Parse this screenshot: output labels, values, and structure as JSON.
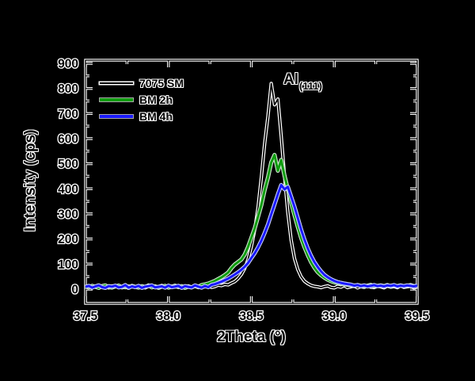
{
  "figure": {
    "background_color": "#000000",
    "axis_line_core_color": "#000000",
    "axis_line_halo_color": "#ffffff",
    "text_color": "#000000",
    "text_outline_color": "#ffffff"
  },
  "chart_data": {
    "type": "line",
    "title": "",
    "xlabel": "2Theta (°)",
    "ylabel": "Intensity (cps)",
    "xlim": [
      37.5,
      39.5
    ],
    "ylim": [
      -57,
      915
    ],
    "grid": false,
    "legend_position": "top-left",
    "annotation": {
      "text": "Al",
      "sub": "(111)"
    },
    "xticks": {
      "major": [
        37.5,
        38.0,
        38.5,
        39.0,
        39.5
      ],
      "labels": [
        "37.5",
        "38.0",
        "38.5",
        "39.0",
        "39.5"
      ],
      "minor": [
        37.75,
        38.25,
        38.75,
        39.25
      ]
    },
    "yticks": {
      "major": [
        0,
        100,
        200,
        300,
        400,
        500,
        600,
        700,
        800,
        900
      ],
      "labels": [
        "0",
        "100",
        "200",
        "300",
        "400",
        "500",
        "600",
        "700",
        "800",
        "900"
      ],
      "minor": [
        50,
        150,
        250,
        350,
        450,
        550,
        650,
        750,
        850
      ]
    },
    "x_start": 37.5,
    "x_step": 0.02,
    "series": [
      {
        "name": "7075 SM",
        "color": "#000000",
        "halo": "#ffffff",
        "width": 1.7,
        "halo_width": 4.2,
        "values": [
          8,
          12,
          6,
          10,
          14,
          7,
          11,
          5,
          13,
          9,
          15,
          8,
          6,
          12,
          10,
          7,
          14,
          9,
          5,
          11,
          13,
          7,
          10,
          15,
          8,
          6,
          12,
          9,
          14,
          10,
          7,
          13,
          8,
          11,
          6,
          15,
          9,
          12,
          7,
          10,
          16,
          14,
          19,
          17,
          24,
          30,
          42,
          58,
          82,
          118,
          170,
          235,
          325,
          445,
          580,
          690,
          820,
          735,
          758,
          610,
          450,
          305,
          195,
          122,
          78,
          50,
          32,
          22,
          15,
          11,
          9,
          6,
          10,
          13,
          7,
          5,
          11,
          8,
          14,
          6,
          9,
          12,
          5,
          10,
          7,
          13,
          8,
          6,
          11,
          9,
          5,
          12,
          8,
          10,
          6,
          13,
          7,
          9,
          11,
          5,
          8
        ]
      },
      {
        "name": "BM 2h",
        "color": "#109c10",
        "halo": "#cfeacf",
        "width": 3,
        "halo_width": 5.2,
        "values": [
          10,
          7,
          13,
          9,
          5,
          12,
          15,
          8,
          6,
          11,
          14,
          7,
          10,
          5,
          13,
          9,
          6,
          12,
          8,
          15,
          7,
          11,
          5,
          10,
          13,
          6,
          9,
          14,
          8,
          12,
          5,
          10,
          7,
          13,
          9,
          16,
          19,
          22,
          27,
          33,
          40,
          47,
          56,
          66,
          84,
          98,
          108,
          118,
          138,
          168,
          205,
          242,
          288,
          335,
          395,
          445,
          505,
          535,
          472,
          515,
          452,
          398,
          345,
          295,
          248,
          205,
          168,
          136,
          108,
          86,
          68,
          56,
          46,
          38,
          32,
          27,
          24,
          21,
          19,
          17,
          15,
          12,
          16,
          13,
          10,
          14,
          17,
          11,
          13,
          15,
          12,
          16,
          10,
          14,
          12,
          15,
          11,
          13,
          16,
          12,
          14
        ]
      },
      {
        "name": "BM 4h",
        "color": "#1a1aff",
        "halo": "#c8d0ff",
        "width": 3,
        "halo_width": 5.2,
        "values": [
          9,
          13,
          6,
          11,
          15,
          8,
          5,
          12,
          10,
          14,
          7,
          9,
          16,
          6,
          11,
          8,
          13,
          5,
          10,
          12,
          15,
          7,
          9,
          11,
          6,
          14,
          8,
          10,
          13,
          5,
          12,
          9,
          7,
          15,
          10,
          6,
          13,
          8,
          17,
          20,
          25,
          30,
          36,
          42,
          50,
          58,
          67,
          77,
          89,
          104,
          124,
          143,
          166,
          193,
          224,
          258,
          298,
          338,
          378,
          415,
          398,
          408,
          368,
          328,
          283,
          238,
          198,
          163,
          133,
          108,
          88,
          71,
          57,
          47,
          39,
          33,
          28,
          25,
          22,
          20,
          18,
          14,
          16,
          12,
          15,
          11,
          13,
          16,
          12,
          14,
          11,
          15,
          13,
          16,
          11,
          14,
          12,
          15,
          13,
          11,
          14
        ]
      }
    ]
  }
}
